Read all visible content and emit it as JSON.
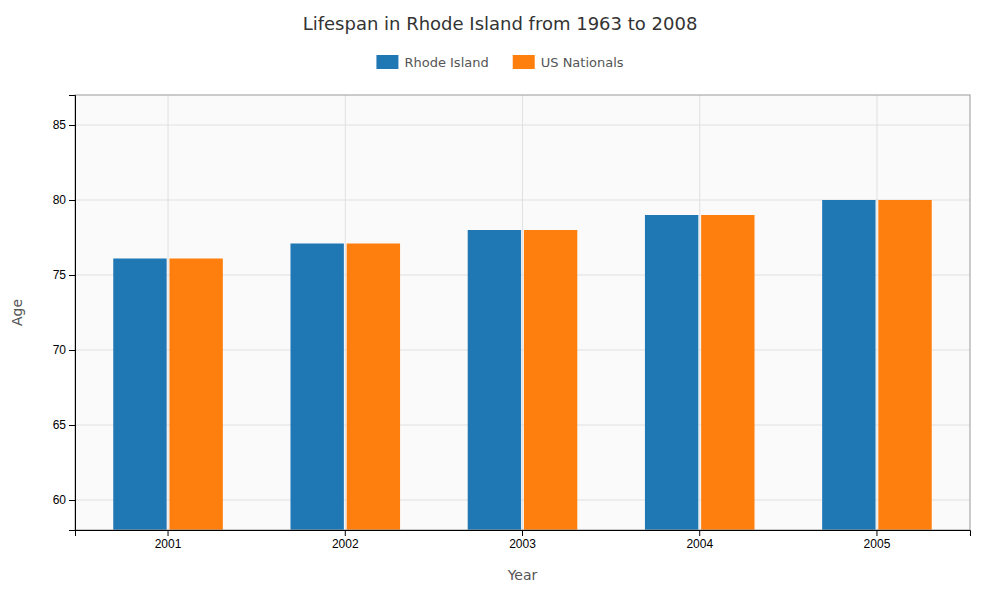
{
  "chart_data": {
    "type": "bar",
    "title": "Lifespan in Rhode Island from 1963 to 2008",
    "xlabel": "Year",
    "ylabel": "Age",
    "categories": [
      "2001",
      "2002",
      "2003",
      "2004",
      "2005"
    ],
    "series": [
      {
        "name": "Rhode Island",
        "values": [
          76.1,
          77.1,
          78.0,
          79.0,
          80.0
        ]
      },
      {
        "name": "US Nationals",
        "values": [
          76.1,
          77.1,
          78.0,
          79.0,
          80.0
        ]
      }
    ],
    "ylim": [
      58,
      87
    ],
    "yticks": [
      60,
      65,
      70,
      75,
      80,
      85
    ],
    "grid": true,
    "legend": "top"
  }
}
